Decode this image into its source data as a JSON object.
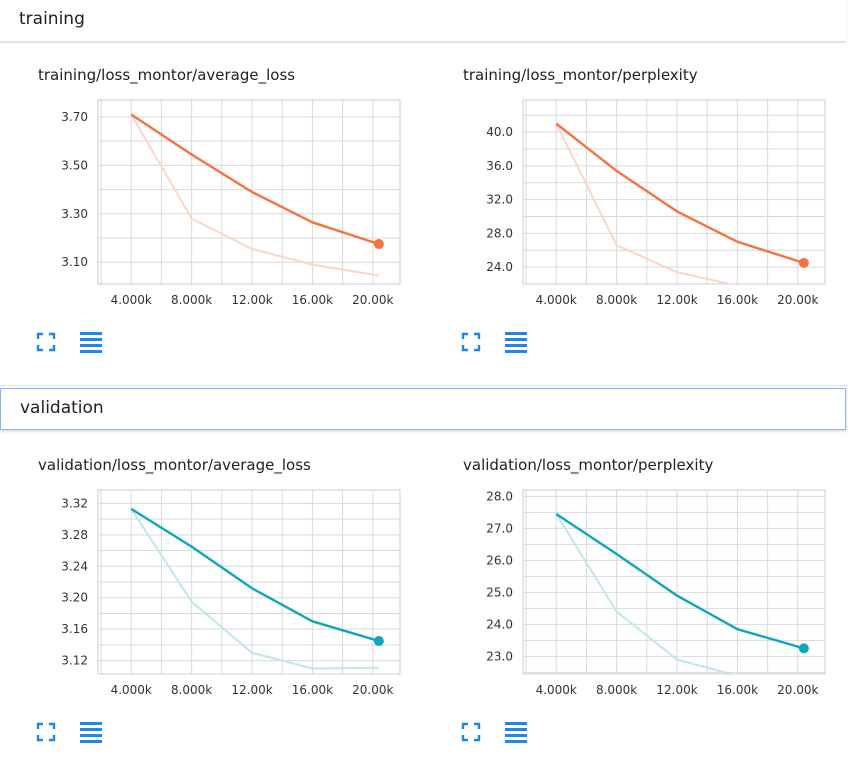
{
  "sections": [
    {
      "title": "training"
    },
    {
      "title": "validation"
    }
  ],
  "colors": {
    "training": "#f4733f",
    "training_faint": "#fbd5c6",
    "validation": "#0fa6bd",
    "validation_faint": "#bfe6ec",
    "icon": "#1e88e5"
  },
  "icons": {
    "expand": "fullscreen-icon",
    "data": "data-table-icon"
  },
  "chart_data": [
    {
      "type": "line",
      "title": "training/loss_montor/average_loss",
      "xlim": [
        1800,
        21800
      ],
      "ylim": [
        3.01,
        3.77
      ],
      "xticks": [
        4000,
        8000,
        12000,
        16000,
        20000
      ],
      "xtick_labels": [
        "4.000k",
        "8.000k",
        "12.00k",
        "16.00k",
        "20.00k"
      ],
      "yticks": [
        3.1,
        3.3,
        3.5,
        3.7
      ],
      "ytick_labels": [
        "3.10",
        "3.30",
        "3.50",
        "3.70"
      ],
      "series": [
        {
          "role": "raw",
          "x": [
            4000,
            8000,
            12000,
            16000,
            20400
          ],
          "y": [
            3.71,
            3.28,
            3.155,
            3.09,
            3.045
          ]
        },
        {
          "role": "smoothed",
          "x": [
            4000,
            8000,
            12000,
            16000,
            20400
          ],
          "y": [
            3.71,
            3.545,
            3.39,
            3.265,
            3.175
          ]
        }
      ]
    },
    {
      "type": "line",
      "title": "training/loss_montor/perplexity",
      "xlim": [
        1800,
        21800
      ],
      "ylim": [
        22,
        43.8
      ],
      "xticks": [
        4000,
        8000,
        12000,
        16000,
        20000
      ],
      "xtick_labels": [
        "4.000k",
        "8.000k",
        "12.00k",
        "16.00k",
        "20.00k"
      ],
      "yticks": [
        24,
        28,
        32,
        36,
        40
      ],
      "ytick_labels": [
        "24.0",
        "28.0",
        "32.0",
        "36.0",
        "40.0"
      ],
      "series": [
        {
          "role": "raw",
          "x": [
            4000,
            8000,
            12000,
            16000,
            20400
          ],
          "y": [
            41.0,
            26.6,
            23.4,
            21.8,
            21.0
          ]
        },
        {
          "role": "smoothed",
          "x": [
            4000,
            8000,
            12000,
            16000,
            20400
          ],
          "y": [
            41.0,
            35.4,
            30.6,
            27.0,
            24.5
          ]
        }
      ]
    },
    {
      "type": "line",
      "title": "validation/loss_montor/average_loss",
      "xlim": [
        1800,
        21800
      ],
      "ylim": [
        3.103,
        3.337
      ],
      "xticks": [
        4000,
        8000,
        12000,
        16000,
        20000
      ],
      "xtick_labels": [
        "4.000k",
        "8.000k",
        "12.00k",
        "16.00k",
        "20.00k"
      ],
      "yticks": [
        3.12,
        3.16,
        3.2,
        3.24,
        3.28,
        3.32
      ],
      "ytick_labels": [
        "3.12",
        "3.16",
        "3.20",
        "3.24",
        "3.28",
        "3.32"
      ],
      "series": [
        {
          "role": "raw",
          "x": [
            4000,
            8000,
            12000,
            16000,
            20400
          ],
          "y": [
            3.313,
            3.195,
            3.13,
            3.11,
            3.111
          ]
        },
        {
          "role": "smoothed",
          "x": [
            4000,
            8000,
            12000,
            16000,
            20400
          ],
          "y": [
            3.313,
            3.265,
            3.212,
            3.17,
            3.145
          ]
        }
      ]
    },
    {
      "type": "line",
      "title": "validation/loss_montor/perplexity",
      "xlim": [
        1800,
        21800
      ],
      "ylim": [
        22.45,
        28.2
      ],
      "xticks": [
        4000,
        8000,
        12000,
        16000,
        20000
      ],
      "xtick_labels": [
        "4.000k",
        "8.000k",
        "12.00k",
        "16.00k",
        "20.00k"
      ],
      "yticks": [
        23,
        24,
        25,
        26,
        27,
        28
      ],
      "ytick_labels": [
        "23.0",
        "24.0",
        "25.0",
        "26.0",
        "27.0",
        "28.0"
      ],
      "series": [
        {
          "role": "raw",
          "x": [
            4000,
            8000,
            12000,
            16000,
            20400
          ],
          "y": [
            27.45,
            24.4,
            22.9,
            22.4,
            22.3
          ]
        },
        {
          "role": "smoothed",
          "x": [
            4000,
            8000,
            12000,
            16000,
            20400
          ],
          "y": [
            27.45,
            26.2,
            24.9,
            23.85,
            23.25
          ]
        }
      ]
    }
  ]
}
